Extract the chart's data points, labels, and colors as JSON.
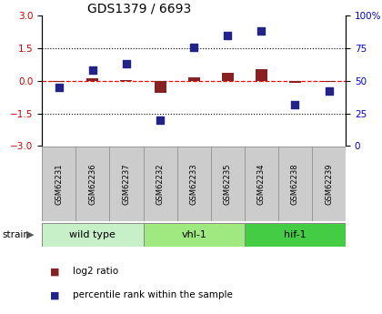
{
  "title": "GDS1379 / 6693",
  "samples": [
    "GSM62231",
    "GSM62236",
    "GSM62237",
    "GSM62232",
    "GSM62233",
    "GSM62235",
    "GSM62234",
    "GSM62238",
    "GSM62239"
  ],
  "log2_ratio": [
    -0.05,
    0.1,
    0.05,
    -0.55,
    0.15,
    0.35,
    0.55,
    -0.07,
    -0.04
  ],
  "percentile_rank": [
    45,
    58,
    63,
    20,
    76,
    85,
    88,
    32,
    42
  ],
  "groups": [
    {
      "label": "wild type",
      "start": 0,
      "end": 3,
      "color": "#c8f0c8"
    },
    {
      "label": "vhl-1",
      "start": 3,
      "end": 6,
      "color": "#a0e880"
    },
    {
      "label": "hif-1",
      "start": 6,
      "end": 9,
      "color": "#44cc44"
    }
  ],
  "ylim_left": [
    -3,
    3
  ],
  "ylim_right": [
    0,
    100
  ],
  "yticks_left": [
    -3,
    -1.5,
    0,
    1.5,
    3
  ],
  "yticks_right": [
    0,
    25,
    50,
    75,
    100
  ],
  "dotted_lines": [
    1.5,
    -1.5
  ],
  "bar_color": "#882222",
  "dot_color": "#222288",
  "bar_width": 0.35,
  "dot_size": 40,
  "legend_labels": [
    "log2 ratio",
    "percentile rank within the sample"
  ],
  "legend_colors": [
    "#882222",
    "#222288"
  ],
  "strain_label": "strain",
  "bg_color": "#ffffff",
  "sample_box_color": "#cccccc",
  "left_axis_color": "#cc0000",
  "right_axis_color": "#0000cc"
}
